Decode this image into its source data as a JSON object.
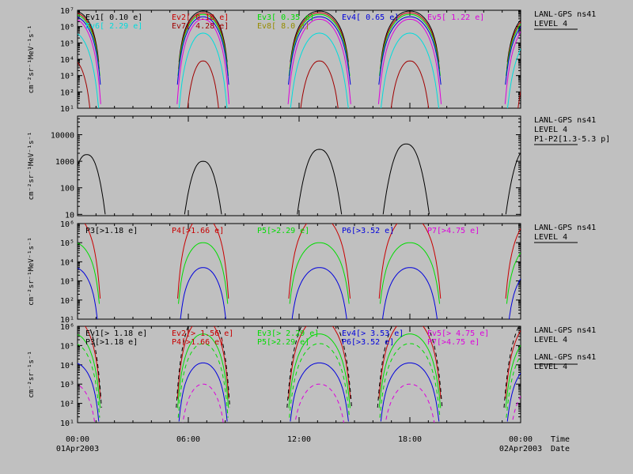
{
  "x_ticks": [
    {
      "t": 0,
      "line1": "00:00",
      "line2": "01Apr2003"
    },
    {
      "t": 6,
      "line1": "06:00",
      "line2": ""
    },
    {
      "t": 12,
      "line1": "12:00",
      "line2": ""
    },
    {
      "t": 18,
      "line1": "18:00",
      "line2": ""
    },
    {
      "t": 24,
      "line1": "00:00",
      "line2": "02Apr2003"
    }
  ],
  "axis_right_label": {
    "line1": "Time",
    "line2": "Date"
  },
  "colors": {
    "black": "#000000",
    "red": "#c80000",
    "green": "#00dc00",
    "blue": "#0000dc",
    "magenta": "#dc00dc",
    "cyan": "#00dcdc",
    "dkred": "#a00000",
    "olive": "#968c00"
  },
  "chart_data": [
    {
      "type": "line",
      "ylabel": "cm⁻²sr⁻¹MeV⁻¹s⁻¹",
      "log": true,
      "ylim_exp": [
        1,
        7
      ],
      "ytick_labels": [
        "10¹",
        "10²",
        "10³",
        "10⁴",
        "10⁵",
        "10⁶",
        "10⁷"
      ],
      "right_labels": [
        "LANL-GPS ns41",
        "LEVEL 4"
      ],
      "legend": [
        {
          "label": "Ev1[ 0.10 e]",
          "color": "black"
        },
        {
          "label": "Ev2[ 0.18 e]",
          "color": "red"
        },
        {
          "label": "Ev3[ 0.35 e]",
          "color": "green"
        },
        {
          "label": "Ev4[ 0.65 e]",
          "color": "blue"
        },
        {
          "label": "Ev5[ 1.22 e]",
          "color": "magenta"
        },
        {
          "label": "Ev6[ 2.29 e]",
          "color": "cyan"
        },
        {
          "label": "Ev7[ 4.28 e]",
          "color": "dkred"
        },
        {
          "label": "Ev8[ 8.0 e]",
          "color": "olive"
        }
      ],
      "series": [
        {
          "color": "black",
          "peak": 6.95,
          "floor": 5.8,
          "width": 0.9
        },
        {
          "color": "red",
          "peak": 6.85,
          "floor": 5.5,
          "width": 0.92
        },
        {
          "color": "green",
          "peak": 6.75,
          "floor": 5.2,
          "width": 0.94
        },
        {
          "color": "blue",
          "peak": 6.6,
          "floor": 4.8,
          "width": 0.96
        },
        {
          "color": "magenta",
          "peak": 6.45,
          "floor": 4.0,
          "width": 0.97
        },
        {
          "color": "cyan",
          "peak": 5.6,
          "floor": 2.2,
          "width": 0.98
        },
        {
          "color": "dkred",
          "peak": 3.9,
          "floor": 1.0,
          "width": 0.7
        }
      ]
    },
    {
      "type": "line",
      "ylabel": "cm⁻²sr⁻¹MeV⁻¹s⁻¹",
      "log": true,
      "ylim_exp": [
        0.95,
        4.7
      ],
      "ytick_labels": [
        "10",
        "100",
        "1000",
        "10000"
      ],
      "ytick_exps": [
        1,
        2,
        3,
        4
      ],
      "right_labels": [
        "LANL-GPS ns41",
        "LEVEL 4",
        "P1-P2[1.3-5.3 p]"
      ],
      "legend": [],
      "passes": [
        {
          "center": 0.5,
          "half": 1.0,
          "peak": 3.25
        },
        {
          "center": 6.8,
          "half": 1.0,
          "peak": 3.0
        },
        {
          "center": 13.1,
          "half": 1.2,
          "peak": 3.45
        },
        {
          "center": 17.8,
          "half": 1.25,
          "peak": 3.65
        },
        {
          "center": 24.4,
          "half": 1.2,
          "peak": 3.5
        }
      ]
    },
    {
      "type": "line",
      "ylabel": "cm⁻²sr⁻¹MeV⁻¹s⁻¹",
      "log": true,
      "ylim_exp": [
        1,
        6
      ],
      "ytick_labels": [
        "10¹",
        "10²",
        "10³",
        "10⁴",
        "10⁵",
        "10⁶"
      ],
      "right_labels": [
        "LANL-GPS ns41",
        "LEVEL 4"
      ],
      "legend": [
        {
          "label": "P3[>1.18 e]",
          "color": "black"
        },
        {
          "label": "P4[>1.66 e]",
          "color": "red"
        },
        {
          "label": "P5[>2.29 e]",
          "color": "green"
        },
        {
          "label": "P6[>3.52 e]",
          "color": "blue"
        },
        {
          "label": "P7[>4.75 e]",
          "color": "magenta"
        }
      ],
      "series": [
        {
          "color": "red",
          "peak": 6.4,
          "floor": 4.5,
          "width": 0.95
        },
        {
          "color": "green",
          "peak": 5.0,
          "floor": 3.8,
          "width": 0.92
        },
        {
          "color": "blue",
          "peak": 3.7,
          "floor": 2.5,
          "width": 0.88
        }
      ]
    },
    {
      "type": "line",
      "ylabel": "cm⁻²sr⁻¹s⁻¹",
      "log": true,
      "ylim_exp": [
        1,
        6
      ],
      "ytick_labels": [
        "10¹",
        "10²",
        "10³",
        "10⁴",
        "10⁵",
        "10⁶"
      ],
      "right_labels": [
        "LANL-GPS ns41",
        "LEVEL 4",
        "LANL-GPS ns41",
        "LEVEL 4"
      ],
      "legend": [
        {
          "label": "Ev1[> 1.18 e]",
          "color": "black"
        },
        {
          "label": "Ev2[> 1.56 e]",
          "color": "red"
        },
        {
          "label": "Ev3[> 2.29 e]",
          "color": "green"
        },
        {
          "label": "Ev4[> 3.53 e]",
          "color": "blue"
        },
        {
          "label": "Ev5[> 4.75 e]",
          "color": "magenta"
        },
        {
          "label": "P3[>1.18 e]",
          "color": "black"
        },
        {
          "label": "P4[>1.66 e]",
          "color": "red"
        },
        {
          "label": "P5[>2.29 e]",
          "color": "green"
        },
        {
          "label": "P6[>3.52 e]",
          "color": "blue"
        },
        {
          "label": "P7[>4.75 e]",
          "color": "magenta"
        }
      ],
      "series": [
        {
          "color": "red",
          "peak": 6.4,
          "floor": 4.6,
          "width": 0.96,
          "dash": false
        },
        {
          "color": "green",
          "peak": 5.6,
          "floor": 4.0,
          "width": 0.95,
          "dash": false
        },
        {
          "color": "blue",
          "peak": 4.1,
          "floor": 3.0,
          "width": 0.9,
          "dash": false
        },
        {
          "color": "black",
          "peak": 6.9,
          "floor": 4.5,
          "width": 1.0,
          "dash": true
        },
        {
          "color": "green",
          "peak": 5.1,
          "floor": 3.5,
          "width": 0.93,
          "dash": true
        },
        {
          "color": "magenta",
          "peak": 3.0,
          "floor": 1.8,
          "width": 0.85,
          "dash": true
        }
      ]
    }
  ],
  "passes": [
    {
      "center": -0.2,
      "half": 1.5
    },
    {
      "center": 6.8,
      "half": 1.45
    },
    {
      "center": 13.1,
      "half": 1.75
    },
    {
      "center": 18.0,
      "half": 1.75
    },
    {
      "center": 24.9,
      "half": 1.8
    }
  ]
}
